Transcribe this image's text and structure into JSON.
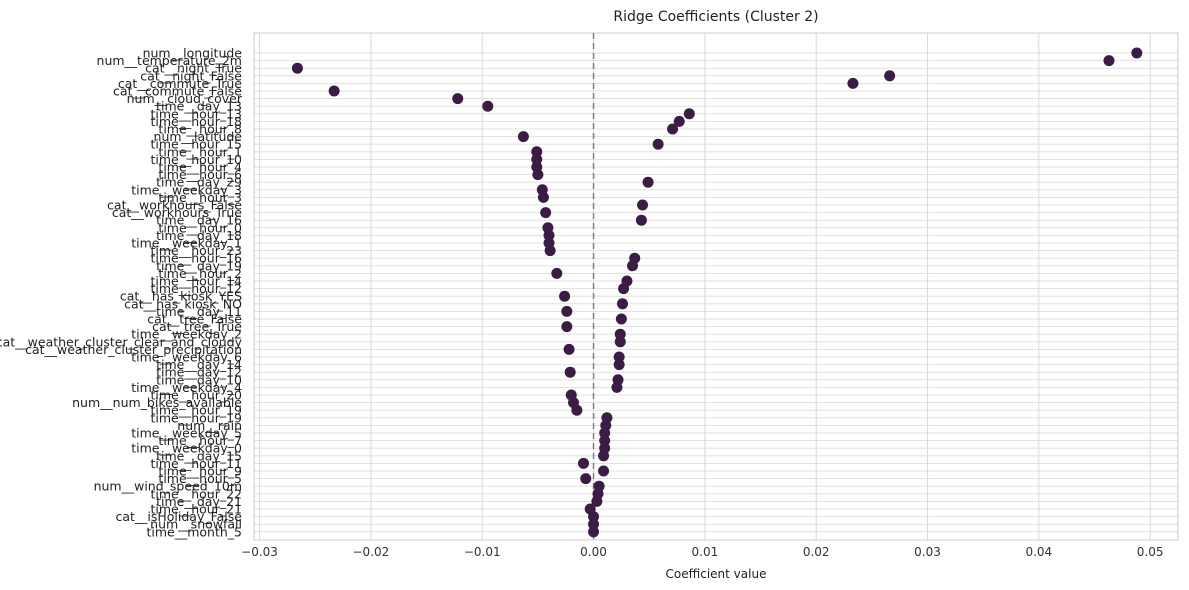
{
  "chart_data": {
    "type": "scatter",
    "title": "Ridge Coefficients (Cluster 2)",
    "xlabel": "Coefficient value",
    "ylabel": "",
    "xlim": [
      -0.0305,
      0.0525
    ],
    "xticks": [
      -0.03,
      -0.02,
      -0.01,
      0.0,
      0.01,
      0.02,
      0.03,
      0.04,
      0.05
    ],
    "xtick_labels": [
      "−0.03",
      "−0.02",
      "−0.01",
      "0.00",
      "0.01",
      "0.02",
      "0.03",
      "0.04",
      "0.05"
    ],
    "grid": true,
    "zero_line": true,
    "colors": {
      "point": "#3b1c44",
      "zero_line": "#808080",
      "grid": "#d9d9d9",
      "frame": "#cccccc"
    },
    "categories": [
      "num__longitude",
      "num__temperature_2m",
      "cat__night_True",
      "cat__night_False",
      "cat__commute_True",
      "cat__commute_False",
      "num__cloud_cover",
      "time__day_13",
      "time__hour_13",
      "time__hour_18",
      "time__hour_8",
      "num__latitude",
      "time__hour_15",
      "time__hour_1",
      "time__hour_10",
      "time__hour_4",
      "time__hour_6",
      "time__day_29",
      "time__weekday_3",
      "time__hour_3",
      "cat__workhours_False",
      "cat__workhours_True",
      "time__day_16",
      "time__hour_0",
      "time__day_18",
      "time__weekday_1",
      "time__hour_23",
      "time__hour_16",
      "time__day_19",
      "time__hour_2",
      "time__hour_14",
      "time__hour_12",
      "cat__has_kiosk_YES",
      "cat__has_kiosk_NO",
      "time__day_11",
      "cat__tree_False",
      "cat__tree_True",
      "time__weekday_2",
      "cat__weather_cluster_clear_and_cloudy",
      "cat__weather_cluster_precipitation",
      "time__weekday_6",
      "time__day_14",
      "time__day_12",
      "time__day_10",
      "time__weekday_4",
      "time__hour_20",
      "num__num_bikes_available",
      "time__hour_19",
      "time__hour_19",
      "num__rain",
      "time__weekday_5",
      "time__hour_7",
      "time__weekday_0",
      "time__day_15",
      "time__hour_11",
      "time__hour_9",
      "time__hour_5",
      "num__wind_speed_10m",
      "time__hour_22",
      "time__day_21",
      "time__hour_21",
      "cat__isHoliday_False",
      "num__snowfall",
      "time__month_5"
    ],
    "values": [
      0.0488,
      0.0463,
      -0.0266,
      0.0266,
      0.0233,
      -0.0233,
      -0.0122,
      -0.0095,
      0.0086,
      0.0077,
      0.0071,
      -0.0063,
      0.0058,
      -0.0051,
      -0.0051,
      -0.0051,
      -0.005,
      0.0049,
      -0.0046,
      -0.0045,
      0.0044,
      -0.0043,
      0.0043,
      -0.0041,
      -0.004,
      -0.004,
      -0.0039,
      0.0037,
      0.0035,
      -0.0033,
      0.003,
      0.0027,
      -0.0026,
      0.0026,
      -0.0024,
      0.0025,
      -0.0024,
      0.0024,
      0.0024,
      -0.0022,
      0.0023,
      0.0023,
      -0.0021,
      0.0022,
      0.0021,
      -0.002,
      -0.0018,
      -0.0015,
      0.0012,
      0.0011,
      0.001,
      0.001,
      0.001,
      0.0009,
      -0.0009,
      0.0009,
      -0.0007,
      0.0005,
      0.0004,
      0.0003,
      -0.0003,
      0.0,
      0.0,
      0.0
    ]
  }
}
